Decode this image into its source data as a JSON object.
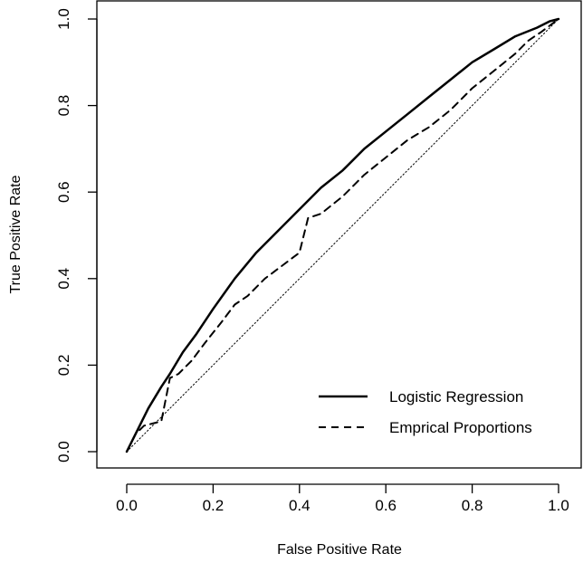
{
  "chart_data": {
    "type": "line",
    "title": "",
    "xlabel": "False Positive Rate",
    "ylabel": "True Positive Rate",
    "xlim": [
      0,
      1
    ],
    "ylim": [
      0,
      1
    ],
    "x_ticks": [
      "0.0",
      "0.2",
      "0.4",
      "0.6",
      "0.8",
      "1.0"
    ],
    "y_ticks": [
      "0.0",
      "0.2",
      "0.4",
      "0.6",
      "0.8",
      "1.0"
    ],
    "grid": false,
    "legend_position": "bottom-right",
    "series": [
      {
        "name": "Logistic Regression",
        "style": "solid",
        "color": "#000000",
        "x": [
          0.0,
          0.02,
          0.05,
          0.08,
          0.1,
          0.13,
          0.16,
          0.2,
          0.25,
          0.3,
          0.35,
          0.4,
          0.45,
          0.5,
          0.55,
          0.6,
          0.65,
          0.7,
          0.75,
          0.8,
          0.85,
          0.9,
          0.95,
          0.98,
          1.0
        ],
        "y": [
          0.0,
          0.04,
          0.1,
          0.15,
          0.18,
          0.23,
          0.27,
          0.33,
          0.4,
          0.46,
          0.51,
          0.56,
          0.61,
          0.65,
          0.7,
          0.74,
          0.78,
          0.82,
          0.86,
          0.9,
          0.93,
          0.96,
          0.98,
          0.995,
          1.0
        ]
      },
      {
        "name": "Emprical Proportions",
        "style": "dashed",
        "color": "#000000",
        "x": [
          0.0,
          0.02,
          0.04,
          0.06,
          0.08,
          0.1,
          0.12,
          0.15,
          0.18,
          0.22,
          0.25,
          0.28,
          0.32,
          0.36,
          0.4,
          0.42,
          0.45,
          0.5,
          0.55,
          0.6,
          0.65,
          0.7,
          0.75,
          0.8,
          0.85,
          0.9,
          0.93,
          0.96,
          1.0
        ],
        "y": [
          0.0,
          0.04,
          0.06,
          0.065,
          0.07,
          0.17,
          0.18,
          0.21,
          0.25,
          0.3,
          0.34,
          0.36,
          0.4,
          0.43,
          0.46,
          0.54,
          0.55,
          0.59,
          0.64,
          0.68,
          0.72,
          0.75,
          0.79,
          0.84,
          0.88,
          0.92,
          0.95,
          0.97,
          1.0
        ]
      },
      {
        "style": "dotted",
        "color": "#000000",
        "x": [
          0,
          1
        ],
        "y": [
          0,
          1
        ]
      }
    ]
  }
}
